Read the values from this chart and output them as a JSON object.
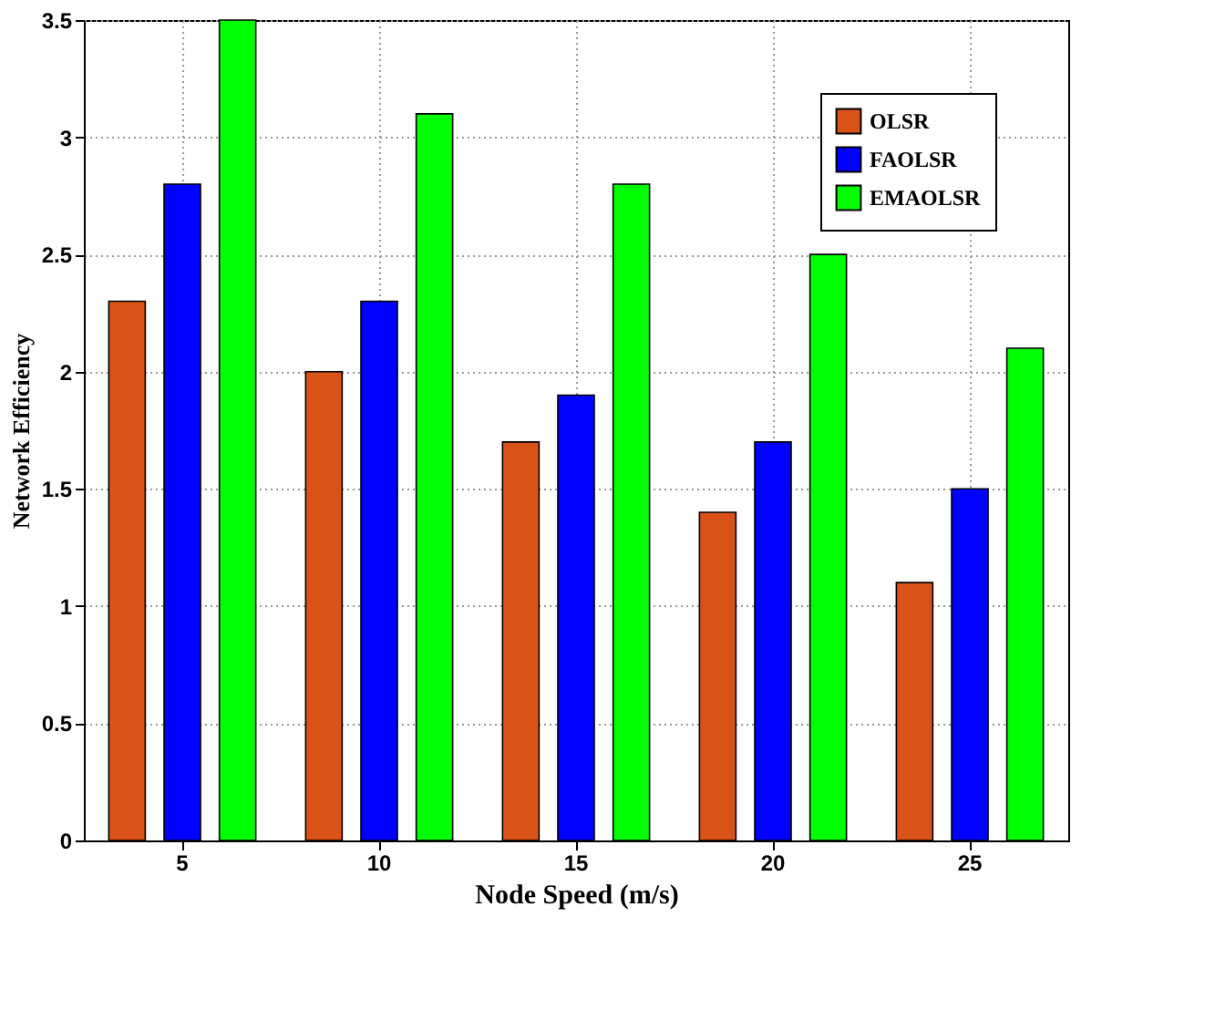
{
  "chart_data": {
    "type": "bar",
    "xlabel": "Node Speed (m/s)",
    "ylabel": "Network Efficiency",
    "categories": [
      "5",
      "10",
      "15",
      "20",
      "25"
    ],
    "series": [
      {
        "name": "OLSR",
        "color": "#d95319",
        "values": [
          2.3,
          2.0,
          1.7,
          1.4,
          1.1
        ]
      },
      {
        "name": "FAOLSR",
        "color": "#0000ff",
        "values": [
          2.8,
          2.3,
          1.9,
          1.7,
          1.5
        ]
      },
      {
        "name": "EMAOLSR",
        "color": "#00ff00",
        "values": [
          3.5,
          3.1,
          2.8,
          2.5,
          2.1
        ]
      }
    ],
    "ylim": [
      0,
      3.5
    ],
    "yticks": [
      0,
      0.5,
      1,
      1.5,
      2,
      2.5,
      3,
      3.5
    ],
    "grid": true,
    "legend": "top right"
  }
}
